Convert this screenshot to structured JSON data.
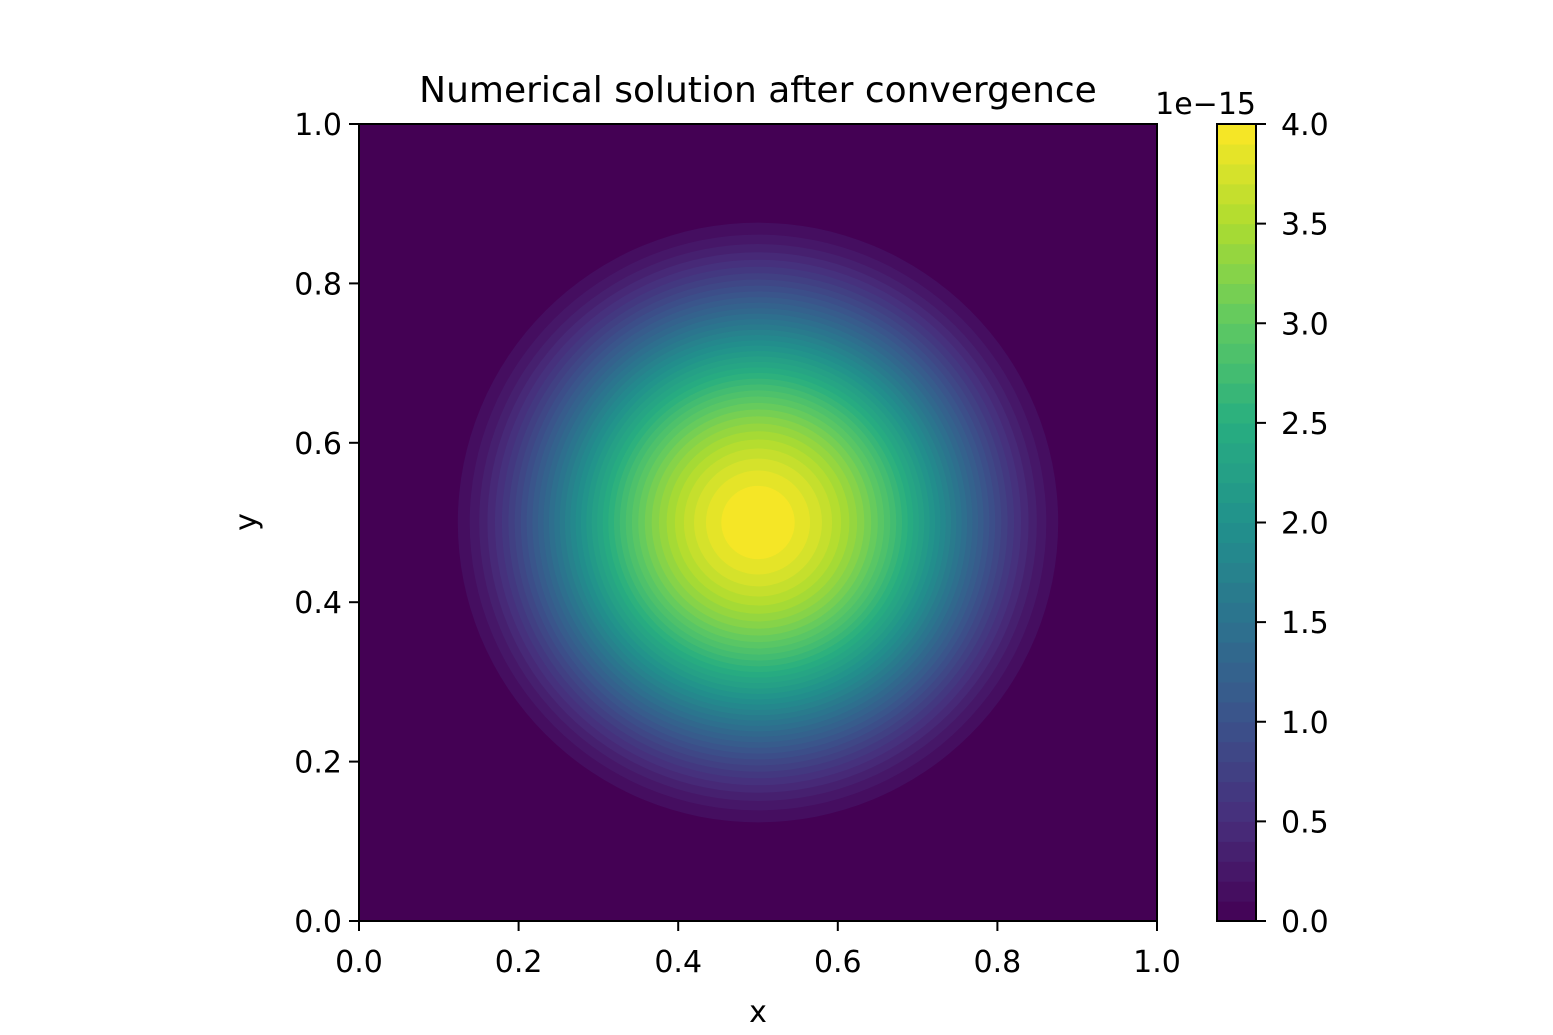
{
  "chart_data": {
    "type": "heatmap",
    "title": "Numerical solution after convergence",
    "xlabel": "x",
    "ylabel": "y",
    "xlim": [
      0.0,
      1.0
    ],
    "ylim": [
      0.0,
      1.0
    ],
    "x_ticks": [
      "0.0",
      "0.2",
      "0.4",
      "0.6",
      "0.8",
      "1.0"
    ],
    "y_ticks": [
      "0.0",
      "0.2",
      "0.4",
      "0.6",
      "0.8",
      "1.0"
    ],
    "colorbar": {
      "label": "",
      "scale_label": "1e−15",
      "range": [
        0.0,
        4.0
      ],
      "ticks": [
        "0.0",
        "0.5",
        "1.0",
        "1.5",
        "2.0",
        "2.5",
        "3.0",
        "3.5",
        "4.0"
      ],
      "colormap": "viridis",
      "levels": 40
    },
    "field": {
      "peak_value": 4.0,
      "peak_x": 0.5,
      "peak_y": 0.5,
      "support_radius_x": 0.41,
      "support_radius_y": 0.41,
      "baseline": 0.0
    },
    "grid": false
  }
}
